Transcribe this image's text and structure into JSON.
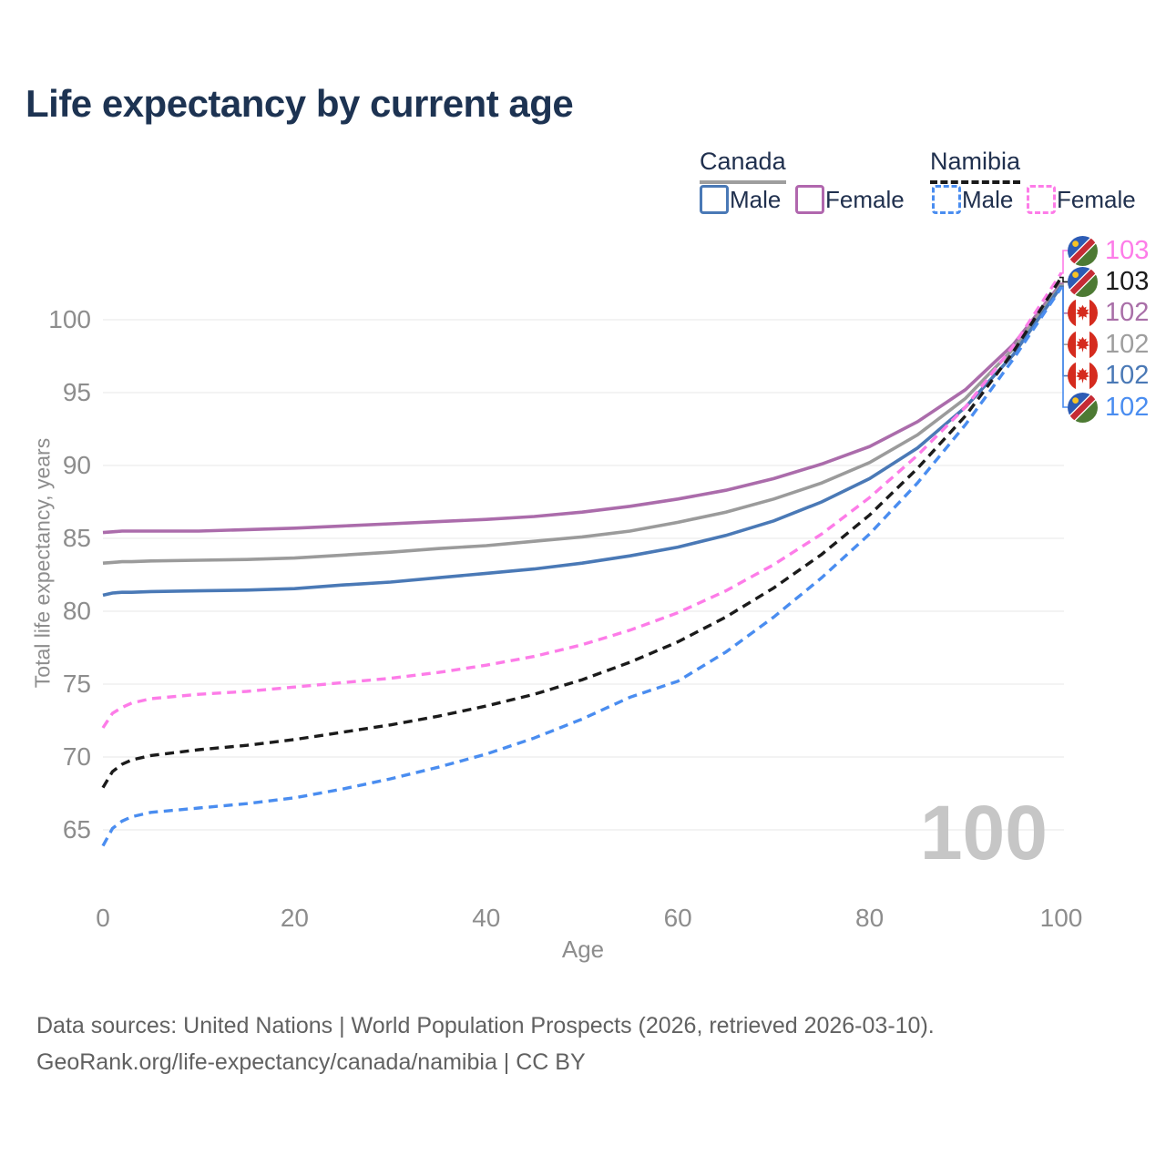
{
  "title": "Life expectancy by current age",
  "legend": {
    "canada": {
      "label": "Canada",
      "style": "solid",
      "line_color": "#9e9e9e",
      "male": {
        "label": "Male",
        "color": "#4a79b6"
      },
      "female": {
        "label": "Female",
        "color": "#b167ae"
      }
    },
    "namibia": {
      "label": "Namibia",
      "style": "dashed",
      "line_color": "#1a1a1a",
      "male": {
        "label": "Male",
        "color": "#4a8df0"
      },
      "female": {
        "label": "Female",
        "color": "#fd7ce8"
      }
    }
  },
  "axes": {
    "y_title": "Total life expectancy, years",
    "x_title": "Age",
    "y_ticks": [
      65,
      70,
      75,
      80,
      85,
      90,
      95,
      100
    ],
    "x_ticks": [
      0,
      20,
      40,
      60,
      80,
      100
    ]
  },
  "age_indicator": "100",
  "end_labels": [
    {
      "series": "namibia_female",
      "flag": "namibia",
      "value": "103",
      "color": "#fd7ce8"
    },
    {
      "series": "namibia_both",
      "flag": "namibia",
      "value": "103",
      "color": "#1a1a1a"
    },
    {
      "series": "canada_female",
      "flag": "canada",
      "value": "102",
      "color": "#a96fa8"
    },
    {
      "series": "canada_both",
      "flag": "canada",
      "value": "102",
      "color": "#9e9e9e"
    },
    {
      "series": "canada_male",
      "flag": "canada",
      "value": "102",
      "color": "#4a79b6"
    },
    {
      "series": "namibia_male",
      "flag": "namibia",
      "value": "102",
      "color": "#4a8df0"
    }
  ],
  "footer": {
    "line1": "Data sources: United Nations | World Population Prospects (2026, retrieved 2026-03-10).",
    "line2": "GeoRank.org/life-expectancy/canada/namibia | CC BY"
  },
  "chart_data": {
    "type": "line",
    "title": "Life expectancy by current age",
    "xlabel": "Age",
    "ylabel": "Total life expectancy, years",
    "x_range": [
      0,
      100
    ],
    "y_tick_range": [
      65,
      100
    ],
    "grid": "horizontal",
    "x": [
      0,
      1,
      2,
      3,
      5,
      10,
      15,
      20,
      25,
      30,
      35,
      40,
      45,
      50,
      55,
      60,
      65,
      70,
      75,
      80,
      85,
      90,
      95,
      100
    ],
    "series": [
      {
        "key": "canada_female",
        "name": "Canada Female",
        "country": "Canada",
        "sex": "female",
        "style": "solid",
        "color": "#ab6cab",
        "end_value": 102,
        "values": [
          85.4,
          85.45,
          85.5,
          85.5,
          85.5,
          85.5,
          85.6,
          85.7,
          85.85,
          86.0,
          86.15,
          86.3,
          86.5,
          86.8,
          87.2,
          87.7,
          88.3,
          89.1,
          90.1,
          91.3,
          93.0,
          95.2,
          98.3,
          102.5
        ]
      },
      {
        "key": "canada_both",
        "name": "Canada (both sexes)",
        "country": "Canada",
        "sex": "all",
        "style": "solid",
        "color": "#9b9b9b",
        "end_value": 102,
        "values": [
          83.3,
          83.35,
          83.4,
          83.4,
          83.45,
          83.5,
          83.55,
          83.65,
          83.85,
          84.05,
          84.3,
          84.5,
          84.8,
          85.1,
          85.5,
          86.1,
          86.8,
          87.7,
          88.8,
          90.2,
          92.1,
          94.6,
          98.0,
          102.4
        ]
      },
      {
        "key": "canada_male",
        "name": "Canada Male",
        "country": "Canada",
        "sex": "male",
        "style": "solid",
        "color": "#4a79b6",
        "end_value": 102,
        "values": [
          81.1,
          81.25,
          81.3,
          81.3,
          81.35,
          81.4,
          81.45,
          81.55,
          81.8,
          82.0,
          82.3,
          82.6,
          82.9,
          83.3,
          83.8,
          84.4,
          85.2,
          86.2,
          87.5,
          89.1,
          91.2,
          94.0,
          97.6,
          102.3
        ]
      },
      {
        "key": "namibia_female",
        "name": "Namibia Female",
        "country": "Namibia",
        "sex": "female",
        "style": "dashed",
        "color": "#fd7ce8",
        "end_value": 103,
        "values": [
          72.0,
          73.0,
          73.4,
          73.7,
          74.0,
          74.3,
          74.5,
          74.8,
          75.1,
          75.4,
          75.8,
          76.3,
          76.9,
          77.7,
          78.7,
          79.9,
          81.4,
          83.2,
          85.3,
          87.8,
          90.7,
          94.0,
          98.2,
          103.2
        ]
      },
      {
        "key": "namibia_both",
        "name": "Namibia (both sexes)",
        "country": "Namibia",
        "sex": "all",
        "style": "dashed",
        "color": "#1b1b1b",
        "end_value": 103,
        "values": [
          67.9,
          69.0,
          69.5,
          69.8,
          70.1,
          70.5,
          70.8,
          71.2,
          71.7,
          72.2,
          72.8,
          73.5,
          74.3,
          75.3,
          76.5,
          77.9,
          79.6,
          81.6,
          83.9,
          86.6,
          89.8,
          93.4,
          97.8,
          102.9
        ]
      },
      {
        "key": "namibia_male",
        "name": "Namibia Male",
        "country": "Namibia",
        "sex": "male",
        "style": "dashed",
        "color": "#4a8df0",
        "end_value": 102,
        "values": [
          63.9,
          65.1,
          65.6,
          65.9,
          66.2,
          66.5,
          66.8,
          67.2,
          67.8,
          68.5,
          69.3,
          70.2,
          71.3,
          72.6,
          74.1,
          75.2,
          77.2,
          79.6,
          82.3,
          85.3,
          88.8,
          92.8,
          97.3,
          102.2
        ]
      }
    ]
  }
}
